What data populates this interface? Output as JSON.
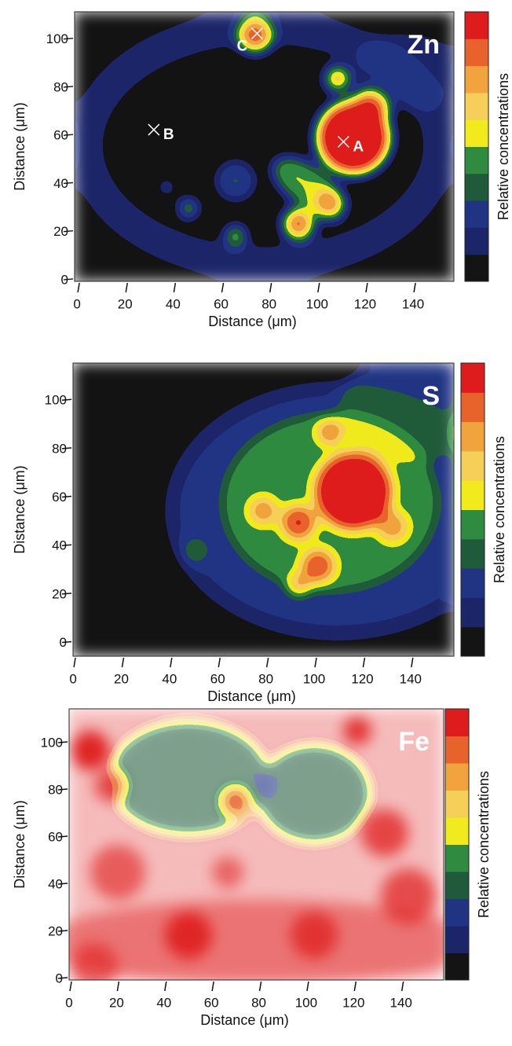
{
  "chart_data": [
    {
      "type": "contour",
      "title": "Zn",
      "x_label": "Distance (μm)",
      "y_label": "Distance (μm)",
      "colorbar_label": "Relative concentrations",
      "xlim": [
        -2,
        156
      ],
      "ylim": [
        -1,
        111
      ],
      "xticks": [
        0,
        20,
        40,
        60,
        80,
        100,
        120,
        140
      ],
      "yticks": [
        0,
        20,
        40,
        60,
        80,
        100
      ],
      "colorbar_colors": [
        "#141414",
        "#1b2668",
        "#213483",
        "#1f5a3a",
        "#2f8b3f",
        "#f1ea1d",
        "#f6cf58",
        "#f1a33e",
        "#e8632c",
        "#df1c1c"
      ],
      "annotations": [
        {
          "label": "A",
          "x": 110,
          "y": 57
        },
        {
          "label": "B",
          "x": 31,
          "y": 62
        },
        {
          "label": "C",
          "x": 74,
          "y": 102
        }
      ]
    },
    {
      "type": "contour",
      "title": "S",
      "x_label": "Distance (μm)",
      "y_label": "Distance (μm)",
      "colorbar_label": "Relative concentrations",
      "xlim": [
        -1,
        157
      ],
      "ylim": [
        -6,
        115
      ],
      "xticks": [
        0,
        20,
        40,
        60,
        80,
        100,
        120,
        140
      ],
      "yticks": [
        0,
        20,
        40,
        60,
        80,
        100
      ],
      "colorbar_colors": [
        "#141414",
        "#1b2668",
        "#213483",
        "#1f5a3a",
        "#2f8b3f",
        "#f1ea1d",
        "#f6cf58",
        "#f1a33e",
        "#e8632c",
        "#df1c1c"
      ]
    },
    {
      "type": "contour",
      "title": "Fe",
      "x_label": "Distance (μm)",
      "y_label": "Distance (μm)",
      "colorbar_label": "Relative concentrations",
      "xlim": [
        -1,
        157
      ],
      "ylim": [
        -1,
        114
      ],
      "xticks": [
        0,
        20,
        40,
        60,
        80,
        100,
        120,
        140
      ],
      "yticks": [
        0,
        20,
        40,
        60,
        80,
        100
      ],
      "colorbar_colors": [
        "#141414",
        "#1b2668",
        "#213483",
        "#1f5a3a",
        "#2f8b3f",
        "#f1ea1d",
        "#f6cf58",
        "#f1a33e",
        "#e8632c",
        "#df1c1c"
      ]
    }
  ]
}
